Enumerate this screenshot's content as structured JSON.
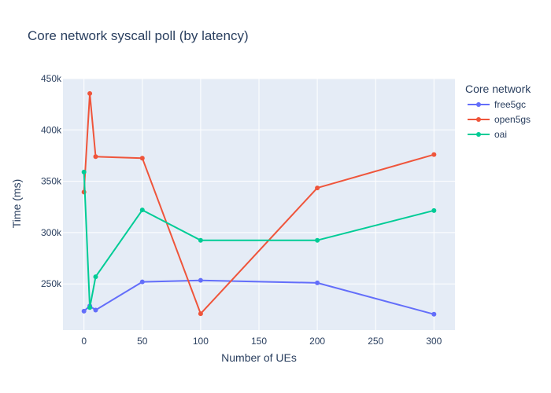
{
  "chart_data": {
    "type": "line",
    "title": "Core network syscall poll (by latency)",
    "xlabel": "Number of UEs",
    "ylabel": "Time (ms)",
    "xlim": [
      -18,
      318
    ],
    "ylim": [
      205000,
      450000
    ],
    "x_ticks": [
      0,
      50,
      100,
      150,
      200,
      250,
      300
    ],
    "y_ticks": [
      250000,
      300000,
      350000,
      400000,
      450000
    ],
    "y_tick_labels": [
      "250k",
      "300k",
      "350k",
      "400k",
      "450k"
    ],
    "grid": true,
    "legend": {
      "title": "Core network",
      "placement": "right"
    },
    "series": [
      {
        "name": "free5gc",
        "color": "#636efa",
        "x": [
          0,
          5,
          10,
          50,
          100,
          200,
          300
        ],
        "y": [
          223500,
          228500,
          224500,
          252000,
          253500,
          251000,
          220500
        ]
      },
      {
        "name": "open5gs",
        "color": "#ef553b",
        "x": [
          0,
          5,
          10,
          50,
          100,
          200,
          300
        ],
        "y": [
          339500,
          435500,
          374000,
          372500,
          221000,
          343500,
          376000
        ]
      },
      {
        "name": "oai",
        "color": "#00cc96",
        "x": [
          0,
          5,
          10,
          50,
          100,
          200,
          300
        ],
        "y": [
          359000,
          227000,
          257000,
          322000,
          292500,
          292500,
          321500
        ]
      }
    ]
  }
}
